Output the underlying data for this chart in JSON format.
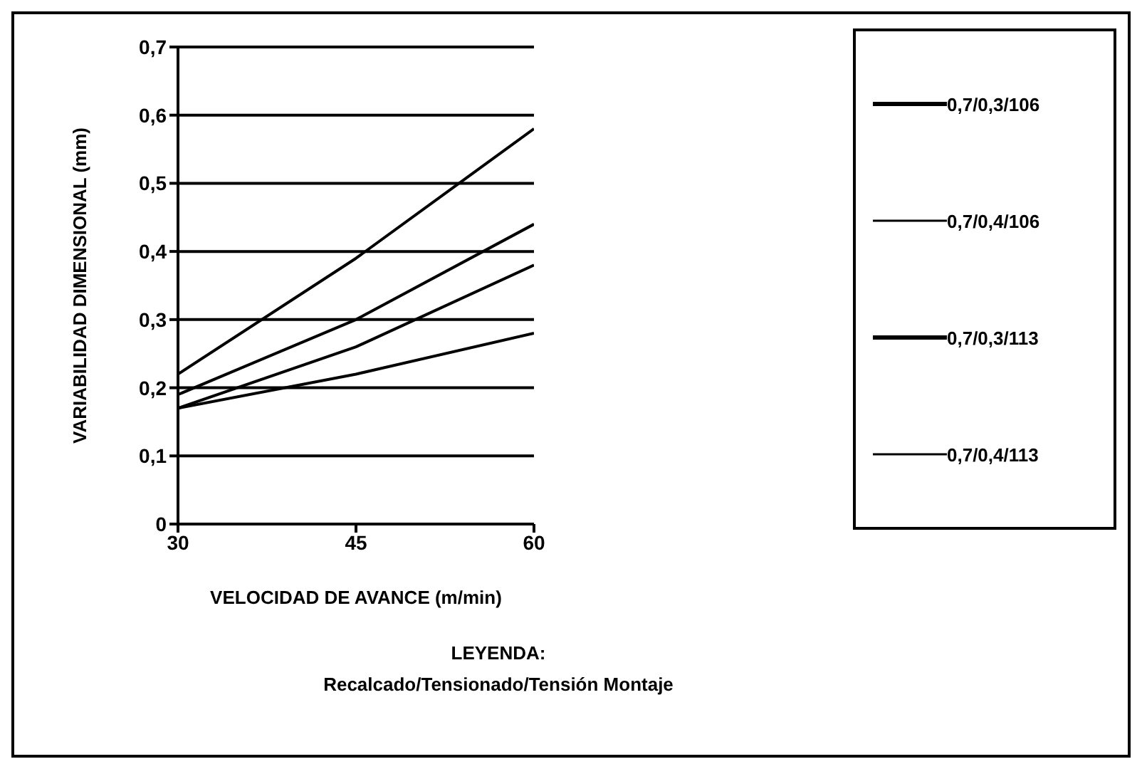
{
  "chart_data": {
    "type": "line",
    "xlabel": "VELOCIDAD DE AVANCE (m/min)",
    "ylabel": "VARIABILIDAD DIMENSIONAL (mm)",
    "x": [
      30,
      45,
      60
    ],
    "series": [
      {
        "name": "0,7/0,3/106",
        "color": "#000000",
        "values": [
          0.22,
          0.39,
          0.58
        ]
      },
      {
        "name": "0,7/0,4/106",
        "color": "#000000",
        "values": [
          0.19,
          0.3,
          0.44
        ]
      },
      {
        "name": "0,7/0,3/113",
        "color": "#000000",
        "values": [
          0.17,
          0.26,
          0.38
        ]
      },
      {
        "name": "0,7/0,4/113",
        "color": "#000000",
        "values": [
          0.17,
          0.22,
          0.28
        ]
      }
    ],
    "xlim": [
      30,
      60
    ],
    "xticks": [
      30,
      45,
      60
    ],
    "ylim": [
      0,
      0.7
    ],
    "yticks": [
      {
        "value": 0,
        "label": "0"
      },
      {
        "value": 0.1,
        "label": "0,1"
      },
      {
        "value": 0.2,
        "label": "0,2"
      },
      {
        "value": 0.3,
        "label": "0,3"
      },
      {
        "value": 0.4,
        "label": "0,4"
      },
      {
        "value": 0.5,
        "label": "0,5"
      },
      {
        "value": 0.6,
        "label": "0,6"
      },
      {
        "value": 0.7,
        "label": "0,7"
      }
    ],
    "grid": "y",
    "legend": "right",
    "marker": "none",
    "line_style": "solid",
    "annotations": [
      "LEYENDA:",
      "Recalcado/Tensionado/Tensión Montaje"
    ]
  }
}
